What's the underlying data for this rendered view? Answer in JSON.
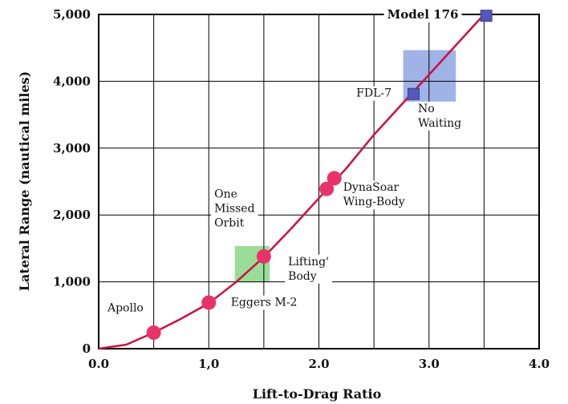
{
  "chart_data": {
    "type": "line",
    "xlabel": "Lift-to-Drag Ratio",
    "ylabel": "Lateral Range (nautical miles)",
    "xlim": [
      0,
      4.0
    ],
    "ylim": [
      0,
      5000
    ],
    "x_ticks": [
      {
        "value": 0.0,
        "label": "0.0"
      },
      {
        "value": 1.0,
        "label": "1,0"
      },
      {
        "value": 2.0,
        "label": "2.0"
      },
      {
        "value": 3.0,
        "label": "3.0"
      },
      {
        "value": 4.0,
        "label": "4.0"
      }
    ],
    "y_ticks": [
      {
        "value": 0,
        "label": "0"
      },
      {
        "value": 1000,
        "label": "1,000"
      },
      {
        "value": 2000,
        "label": "2,000"
      },
      {
        "value": 3000,
        "label": "3,000"
      },
      {
        "value": 4000,
        "label": "4,000"
      },
      {
        "value": 5000,
        "label": "5,000"
      }
    ],
    "grid": true,
    "curve": {
      "color": "#cc1144",
      "x": [
        0.0,
        0.25,
        0.5,
        0.75,
        1.0,
        1.25,
        1.5,
        1.75,
        2.0,
        2.25,
        2.5,
        2.75,
        3.0,
        3.25,
        3.5
      ],
      "y": [
        0,
        60,
        240,
        450,
        680,
        1000,
        1370,
        1800,
        2250,
        2700,
        3200,
        3650,
        4100,
        4550,
        5000
      ]
    },
    "points": [
      {
        "name": "Apollo",
        "x": 0.5,
        "y": 240,
        "marker": "circle",
        "color": "#e8336a"
      },
      {
        "name": "Eggers M-2",
        "x": 1.0,
        "y": 690,
        "marker": "circle",
        "color": "#e8336a"
      },
      {
        "name": "Lifting Body",
        "x": 1.5,
        "y": 1380,
        "marker": "circle",
        "color": "#e8336a"
      },
      {
        "name": "DynaSoar Wing-Body",
        "x": 2.07,
        "y": 2390,
        "marker": "circle",
        "color": "#e8336a"
      },
      {
        "name": "DynaSoar Wing-Body",
        "x": 2.14,
        "y": 2550,
        "marker": "circle",
        "color": "#e8336a"
      },
      {
        "name": "FDL-7",
        "x": 2.86,
        "y": 3810,
        "marker": "square",
        "color": "#5558b8"
      },
      {
        "name": "Model 176",
        "x": 3.52,
        "y": 4980,
        "marker": "square",
        "color": "#5558b8"
      }
    ],
    "regions": [
      {
        "x0": 1.24,
        "x1": 1.55,
        "y0": 1000,
        "y1": 1530,
        "color": "#99dd99"
      },
      {
        "x0": 2.77,
        "x1": 3.24,
        "y0": 3700,
        "y1": 4460,
        "color": "#9fb3e6"
      }
    ],
    "annotations": [
      {
        "id": "apollo",
        "lines": [
          "Apollo"
        ],
        "x": 0.08,
        "y": 560,
        "bold": false
      },
      {
        "id": "eggers",
        "lines": [
          "Eggers M-2"
        ],
        "x": 1.2,
        "y": 640,
        "bold": false
      },
      {
        "id": "lifting",
        "lines": [
          "Lifting'",
          "Body"
        ],
        "x": 1.72,
        "y": 1250,
        "bold": false
      },
      {
        "id": "one-missed",
        "lines": [
          "One",
          "Missed",
          "Orbit"
        ],
        "x": 1.05,
        "y": 2260,
        "bold": false
      },
      {
        "id": "dynasoar",
        "lines": [
          "DynaSoar",
          "Wing-Body"
        ],
        "x": 2.22,
        "y": 2360,
        "bold": false
      },
      {
        "id": "fdl7",
        "lines": [
          "FDL-7"
        ],
        "x": 2.34,
        "y": 3770,
        "bold": false
      },
      {
        "id": "no-waiting",
        "lines": [
          "No",
          "Waiting"
        ],
        "x": 2.9,
        "y": 3540,
        "bold": false
      },
      {
        "id": "model176",
        "lines": [
          "Model 176"
        ],
        "x": 2.62,
        "y": 4940,
        "bold": true
      }
    ]
  }
}
